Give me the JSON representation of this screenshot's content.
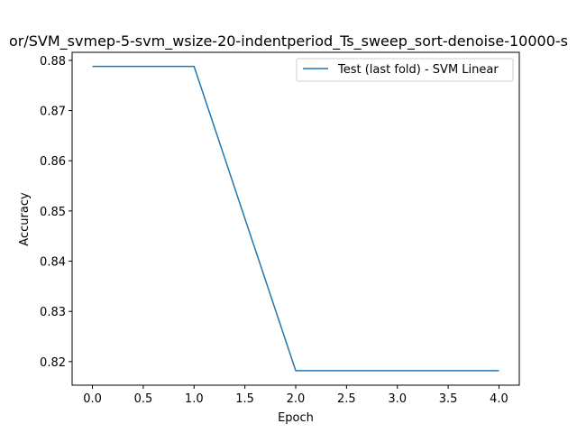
{
  "chart_data": {
    "type": "line",
    "title": "or/SVM_svmep-5-svm_wsize-20-indentperiod_Ts_sweep_sort-denoise-10000-s",
    "xlabel": "Epoch",
    "ylabel": "Accuracy",
    "x": [
      0,
      1,
      2,
      3,
      4
    ],
    "xlim": [
      -0.2,
      4.2
    ],
    "ylim": [
      0.8153,
      0.8816
    ],
    "xticks": [
      "0.0",
      "0.5",
      "1.0",
      "1.5",
      "2.0",
      "2.5",
      "3.0",
      "3.5",
      "4.0"
    ],
    "yticks": [
      "0.82",
      "0.83",
      "0.84",
      "0.85",
      "0.86",
      "0.87",
      "0.88"
    ],
    "grid": false,
    "legend_position": "top-right",
    "series": [
      {
        "name": "Test (last fold) - SVM Linear",
        "color": "#1f77b4",
        "values": [
          0.8788,
          0.8788,
          0.8182,
          0.8182,
          0.8182
        ]
      }
    ]
  }
}
